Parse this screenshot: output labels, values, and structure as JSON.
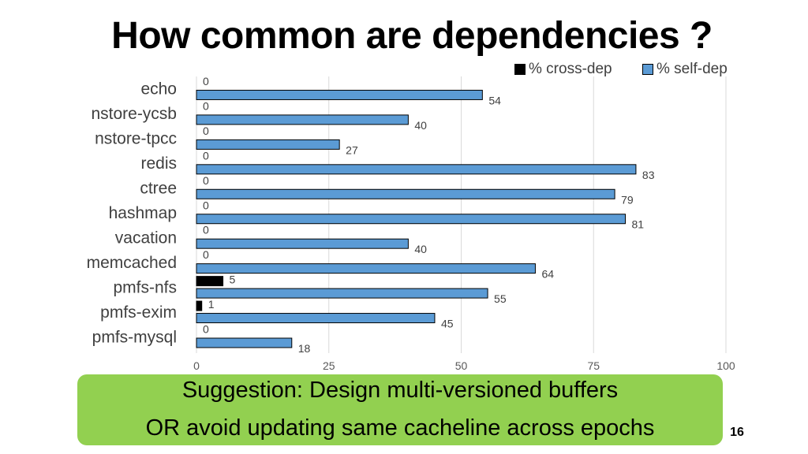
{
  "title": "How common are dependencies ?",
  "legend": {
    "cross_dep": "% cross-dep",
    "self_dep": "% self-dep"
  },
  "callout": {
    "line1": "Suggestion: Design multi-versioned buffers",
    "line2": "OR avoid updating same cacheline across epochs"
  },
  "page_number": "16",
  "colors": {
    "cross_dep": "#000000",
    "self_dep": "#5b9bd5",
    "callout_bg": "#92d050"
  },
  "chart_data": {
    "type": "bar",
    "orientation": "horizontal",
    "categories": [
      "echo",
      "nstore-ycsb",
      "nstore-tpcc",
      "redis",
      "ctree",
      "hashmap",
      "vacation",
      "memcached",
      "pmfs-nfs",
      "pmfs-exim",
      "pmfs-mysql"
    ],
    "series": [
      {
        "name": "% cross-dep",
        "values": [
          0,
          0,
          0,
          0,
          0,
          0,
          0,
          0,
          5,
          1,
          0
        ]
      },
      {
        "name": "% self-dep",
        "values": [
          54,
          40,
          27,
          83,
          79,
          81,
          40,
          64,
          55,
          45,
          18
        ]
      }
    ],
    "xlim": [
      0,
      100
    ],
    "xticks": [
      0,
      25,
      50,
      75,
      100
    ],
    "grid": "vertical",
    "legend_position": "top-right"
  }
}
